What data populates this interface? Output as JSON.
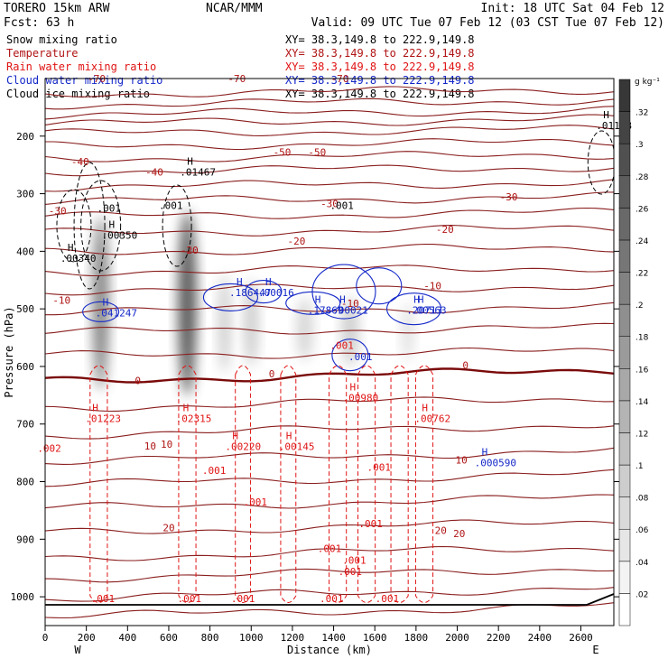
{
  "header": {
    "model": "TORERO  15km ARW",
    "source": "NCAR/MMM",
    "init": "Init: 18 UTC Sat 04 Feb 12",
    "fcst": "Fcst:    63 h",
    "valid": "Valid: 09 UTC Tue 07 Feb 12 (03 CST Tue 07 Feb 12)"
  },
  "legend": [
    {
      "name": "Snow mixing ratio",
      "xy": "XY=  38.3,149.8 to 222.9,149.8",
      "color": "#000000"
    },
    {
      "name": "Temperature",
      "xy": "XY=  38.3,149.8 to 222.9,149.8",
      "color": "#b01414"
    },
    {
      "name": "Rain water mixing ratio",
      "xy": "XY=  38.3,149.8 to 222.9,149.8",
      "color": "#e01414"
    },
    {
      "name": "Cloud water mixing ratio",
      "xy": "XY=  38.3,149.8 to 222.9,149.8",
      "color": "#1428c8"
    },
    {
      "name": "Cloud ice mixing ratio",
      "xy": "XY=  38.3,149.8 to 222.9,149.8",
      "color": "#000000"
    }
  ],
  "chart_data": {
    "type": "cross-section",
    "xlabel": "Distance (km)",
    "ylabel": "Pressure (hPa)",
    "x_ticks": [
      0,
      200,
      400,
      600,
      800,
      1000,
      1200,
      1400,
      1600,
      1800,
      2000,
      2200,
      2400,
      2600
    ],
    "xlim": [
      0,
      2760
    ],
    "y_ticks": [
      200,
      300,
      400,
      500,
      600,
      700,
      800,
      900,
      1000
    ],
    "ylim": [
      1050,
      100
    ],
    "x_end_labels": {
      "left": "W",
      "right": "E"
    },
    "colorbar": {
      "units": "g kg⁻¹",
      "ticks": [
        ".02",
        ".04",
        ".06",
        ".08",
        ".1",
        ".12",
        ".14",
        ".16",
        ".18",
        ".2",
        ".22",
        ".24",
        ".26",
        ".28",
        ".3",
        ".32"
      ]
    },
    "temperature_isotherm_labels": [
      {
        "x": 250,
        "p": 100,
        "text": "-70"
      },
      {
        "x": 930,
        "p": 100,
        "text": "-70"
      },
      {
        "x": 1430,
        "p": 100,
        "text": "-70"
      },
      {
        "x": 1150,
        "p": 228,
        "text": "-50"
      },
      {
        "x": 1320,
        "p": 228,
        "text": "-50"
      },
      {
        "x": 170,
        "p": 244,
        "text": "-40"
      },
      {
        "x": 530,
        "p": 262,
        "text": "-40"
      },
      {
        "x": 1380,
        "p": 317,
        "text": "-30"
      },
      {
        "x": 2250,
        "p": 305,
        "text": "-30"
      },
      {
        "x": 60,
        "p": 330,
        "text": "-30"
      },
      {
        "x": 700,
        "p": 398,
        "text": "-20"
      },
      {
        "x": 1220,
        "p": 382,
        "text": "-20"
      },
      {
        "x": 1940,
        "p": 362,
        "text": "-20"
      },
      {
        "x": 80,
        "p": 485,
        "text": "-10"
      },
      {
        "x": 1480,
        "p": 490,
        "text": "-10"
      },
      {
        "x": 1880,
        "p": 460,
        "text": "-10"
      },
      {
        "x": 450,
        "p": 624,
        "text": "0"
      },
      {
        "x": 1100,
        "p": 613,
        "text": "0"
      },
      {
        "x": 2040,
        "p": 598,
        "text": "0"
      },
      {
        "x": 510,
        "p": 738,
        "text": "10"
      },
      {
        "x": 590,
        "p": 735,
        "text": "10"
      },
      {
        "x": 2020,
        "p": 762,
        "text": "10"
      },
      {
        "x": 600,
        "p": 880,
        "text": "20"
      },
      {
        "x": 1920,
        "p": 885,
        "text": "20"
      },
      {
        "x": 2010,
        "p": 890,
        "text": "20"
      }
    ],
    "maxima": [
      {
        "series": "cloud ice",
        "x": 300,
        "p": 375,
        "text": ".00350",
        "color": "#000000"
      },
      {
        "series": "cloud ice",
        "x": 100,
        "p": 415,
        "text": ".00340",
        "color": "#000000"
      },
      {
        "series": "cloud ice",
        "x": 680,
        "p": 265,
        "text": ".01467",
        "color": "#000000"
      },
      {
        "series": "cloud ice",
        "x": 2700,
        "p": 185,
        "text": ".01188",
        "color": "#000000"
      },
      {
        "series": "cloud water",
        "x": 270,
        "p": 510,
        "text": ".041247",
        "color": "#1428c8"
      },
      {
        "series": "cloud water",
        "x": 920,
        "p": 475,
        "text": ".186447",
        "color": "#1428c8"
      },
      {
        "series": "cloud water",
        "x": 1060,
        "p": 475,
        "text": ".00016",
        "color": "#1428c8"
      },
      {
        "series": "cloud water",
        "x": 1300,
        "p": 505,
        "text": ".17869",
        "color": "#1428c8"
      },
      {
        "series": "cloud water",
        "x": 1420,
        "p": 505,
        "text": ".00021",
        "color": "#1428c8"
      },
      {
        "series": "cloud water",
        "x": 1780,
        "p": 505,
        "text": ".20713",
        "color": "#1428c8"
      },
      {
        "series": "cloud water",
        "x": 1800,
        "p": 505,
        "text": ".00563",
        "color": "#1428c8"
      },
      {
        "series": "cloud water",
        "x": 2110,
        "p": 770,
        "text": ".000590",
        "color": "#1428c8"
      },
      {
        "series": "rain water",
        "x": 220,
        "p": 693,
        "text": ".01223",
        "color": "#e01414"
      },
      {
        "series": "rain water",
        "x": 660,
        "p": 693,
        "text": ".02315",
        "color": "#e01414"
      },
      {
        "series": "rain water",
        "x": 900,
        "p": 742,
        "text": ".00220",
        "color": "#e01414"
      },
      {
        "series": "rain water",
        "x": 1160,
        "p": 742,
        "text": ".00145",
        "color": "#e01414"
      },
      {
        "series": "rain water",
        "x": 1470,
        "p": 657,
        "text": ".00980",
        "color": "#e01414"
      },
      {
        "series": "rain water",
        "x": 1820,
        "p": 693,
        "text": ".00762",
        "color": "#e01414"
      }
    ],
    "minor_labels": [
      {
        "x": 1440,
        "p": 320,
        "text": ".001",
        "color": "#000000"
      },
      {
        "x": 310,
        "p": 325,
        "text": ".001",
        "color": "#000000"
      },
      {
        "x": 610,
        "p": 320,
        "text": ".001",
        "color": "#000000"
      },
      {
        "x": 1530,
        "p": 583,
        "text": ".001",
        "color": "#1428c8"
      },
      {
        "x": 1440,
        "p": 563,
        "text": ".001",
        "color": "#e01414"
      },
      {
        "x": 20,
        "p": 742,
        "text": ".002",
        "color": "#e01414"
      },
      {
        "x": 820,
        "p": 780,
        "text": ".001",
        "color": "#e01414"
      },
      {
        "x": 1020,
        "p": 835,
        "text": ".001",
        "color": "#e01414"
      },
      {
        "x": 1620,
        "p": 775,
        "text": ".001",
        "color": "#e01414"
      },
      {
        "x": 1580,
        "p": 873,
        "text": ".001",
        "color": "#e01414"
      },
      {
        "x": 1380,
        "p": 916,
        "text": ".001",
        "color": "#e01414"
      },
      {
        "x": 1500,
        "p": 936,
        "text": ".001",
        "color": "#e01414"
      },
      {
        "x": 1480,
        "p": 956,
        "text": ".001",
        "color": "#e01414"
      },
      {
        "x": 280,
        "p": 1003,
        "text": ".001",
        "color": "#e01414"
      },
      {
        "x": 700,
        "p": 1003,
        "text": ".001",
        "color": "#e01414"
      },
      {
        "x": 960,
        "p": 1003,
        "text": ".001",
        "color": "#e01414"
      },
      {
        "x": 1390,
        "p": 1003,
        "text": ".001",
        "color": "#e01414"
      },
      {
        "x": 1660,
        "p": 1003,
        "text": ".001",
        "color": "#e01414"
      }
    ],
    "snow_cores": [
      {
        "x": 270,
        "p_top": 340,
        "p_bottom": 640,
        "width_km": 80,
        "intensity": 0.24
      },
      {
        "x": 690,
        "p_top": 330,
        "p_bottom": 650,
        "width_km": 90,
        "intensity": 0.32
      },
      {
        "x": 870,
        "p_top": 440,
        "p_bottom": 610,
        "width_km": 60,
        "intensity": 0.1
      },
      {
        "x": 1000,
        "p_top": 450,
        "p_bottom": 600,
        "width_km": 70,
        "intensity": 0.1
      },
      {
        "x": 1260,
        "p_top": 480,
        "p_bottom": 590,
        "width_km": 80,
        "intensity": 0.08
      },
      {
        "x": 1480,
        "p_top": 480,
        "p_bottom": 600,
        "width_km": 80,
        "intensity": 0.1
      },
      {
        "x": 1760,
        "p_top": 490,
        "p_bottom": 590,
        "width_km": 60,
        "intensity": 0.06
      }
    ]
  }
}
